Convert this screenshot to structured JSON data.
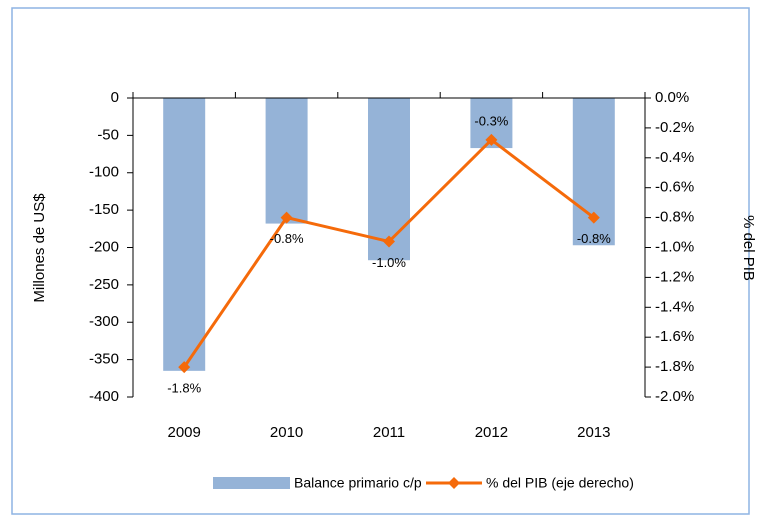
{
  "chart_data": {
    "type": "bar",
    "categories": [
      "2009",
      "2010",
      "2011",
      "2012",
      "2013"
    ],
    "series": [
      {
        "name": "Balance primario c/p",
        "color": "#95b3d7",
        "values": [
          -365,
          -168,
          -217,
          -67,
          -197
        ]
      },
      {
        "name": "% del PIB (eje derecho)",
        "color": "#f56a0a",
        "axis": "y2",
        "type": "line",
        "values": [
          -1.8,
          -0.8,
          -0.96,
          -0.28,
          -0.8
        ],
        "value_labels": [
          "-1.8%",
          "-0.8%",
          "-1.0%",
          "-0.3%",
          "-0.8%"
        ]
      }
    ],
    "ylabel": "Millones de US$",
    "y2label": "% del PIB",
    "ylim": [
      -400,
      0
    ],
    "yticks": [
      0,
      -50,
      -100,
      -150,
      -200,
      -250,
      -300,
      -350,
      -400
    ],
    "y2lim": [
      -2,
      0
    ],
    "y2ticks": [
      {
        "value": 0,
        "label": "0.0%"
      },
      {
        "value": -0.2,
        "label": "-0.2%"
      },
      {
        "value": -0.4,
        "label": "-0.4%"
      },
      {
        "value": -0.6,
        "label": "-0.6%"
      },
      {
        "value": -0.8,
        "label": "-0.8%"
      },
      {
        "value": -1.0,
        "label": "-1.0%"
      },
      {
        "value": -1.2,
        "label": "-1.2%"
      },
      {
        "value": -1.4,
        "label": "-1.4%"
      },
      {
        "value": -1.6,
        "label": "-1.6%"
      },
      {
        "value": -1.8,
        "label": "-1.8%"
      },
      {
        "value": -2.0,
        "label": "-2.0%"
      }
    ],
    "legend": "bottom"
  }
}
